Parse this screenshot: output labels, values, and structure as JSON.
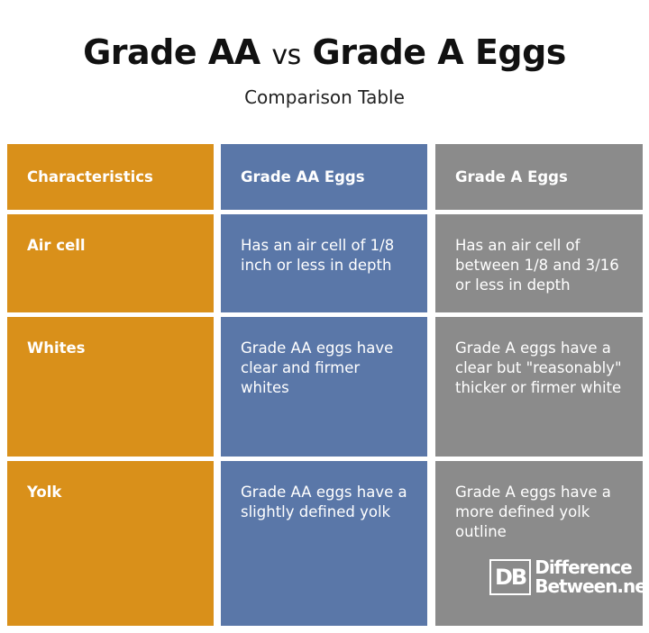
{
  "title": {
    "left": "Grade AA",
    "middle": "vs",
    "right": "Grade A Eggs"
  },
  "subtitle": "Comparison Table",
  "table": {
    "header": [
      "Characteristics",
      "Grade AA Eggs",
      "Grade A Eggs"
    ],
    "rows": [
      [
        "Air cell",
        "Has an air cell of 1/8 inch or less in depth",
        "Has an air cell of between 1/8 and 3/16 or less in depth"
      ],
      [
        "Whites",
        "Grade AA eggs have clear and firmer whites",
        "Grade A eggs have a clear but \"reasonably\" thicker or firmer white"
      ],
      [
        "Yolk",
        "Grade AA eggs have a slightly defined yolk",
        "Grade A eggs have a more defined yolk outline"
      ]
    ]
  },
  "logo": {
    "mark": "DB",
    "line1": "Difference",
    "line2": "Between.net"
  }
}
